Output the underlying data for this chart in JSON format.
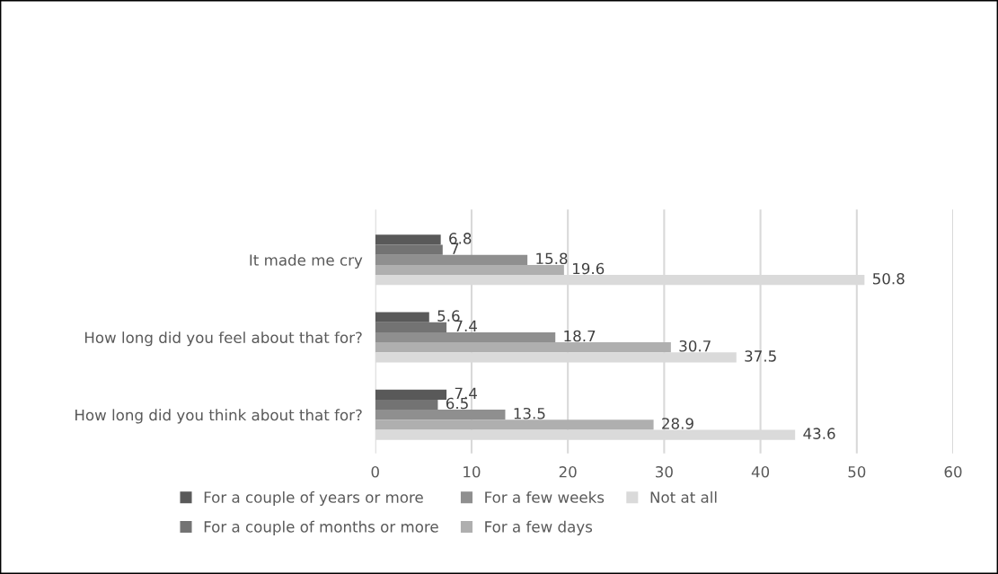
{
  "chart_data": {
    "type": "bar",
    "orientation": "horizontal",
    "categories": [
      "It made me cry",
      "How long did you feel about that for?",
      "How long did you think about that for?"
    ],
    "series": [
      {
        "name": "For a couple of years or more",
        "color": "#595959",
        "values": [
          6.8,
          5.6,
          7.4
        ]
      },
      {
        "name": "For a couple of months or more",
        "color": "#737373",
        "values": [
          7,
          7.4,
          6.5
        ]
      },
      {
        "name": "For a few weeks",
        "color": "#8f8f8f",
        "values": [
          15.8,
          18.7,
          13.5
        ]
      },
      {
        "name": "For a few days",
        "color": "#afafaf",
        "values": [
          19.6,
          30.7,
          28.9
        ]
      },
      {
        "name": "Not at all",
        "color": "#dadada",
        "values": [
          50.8,
          37.5,
          43.6
        ]
      }
    ],
    "xlim": [
      0,
      60
    ],
    "xticks": [
      0,
      10,
      20,
      30,
      40,
      50,
      60
    ],
    "grid": "x",
    "legend": "bottom",
    "data_labels": true
  }
}
